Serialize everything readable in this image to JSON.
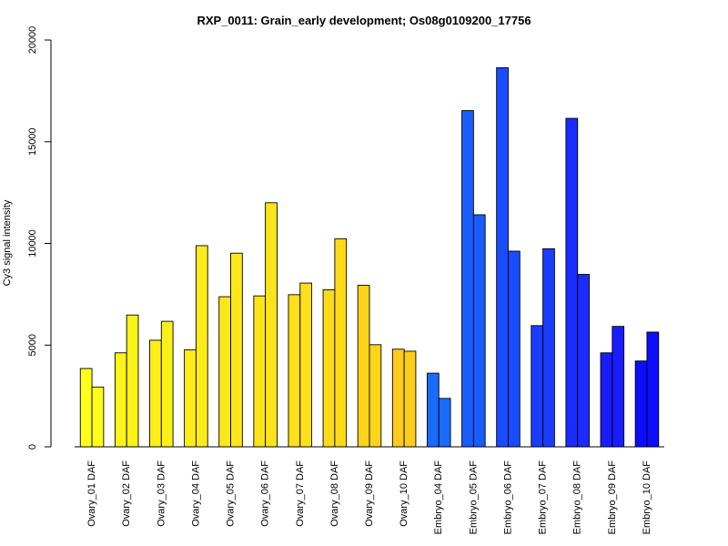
{
  "chart_data": {
    "type": "bar",
    "title": "RXP_0011: Grain_early development; Os08g0109200_17756",
    "xlabel": "",
    "ylabel": "Cy3 signal intensity",
    "ylim": [
      0,
      20000
    ],
    "yticks": [
      0,
      5000,
      10000,
      15000,
      20000
    ],
    "grid": false,
    "categories": [
      "Ovary_01 DAF",
      "Ovary_02 DAF",
      "Ovary_03 DAF",
      "Ovary_04 DAF",
      "Ovary_05 DAF",
      "Ovary_06 DAF",
      "Ovary_07 DAF",
      "Ovary_08 DAF",
      "Ovary_09 DAF",
      "Ovary_10 DAF",
      "Embryo_04 DAF",
      "Embryo_05 DAF",
      "Embryo_06 DAF",
      "Embryo_07 DAF",
      "Embryo_08 DAF",
      "Embryo_09 DAF",
      "Embryo_10 DAF"
    ],
    "colors": [
      "#ffff1a",
      "#fdf318",
      "#fdf01a",
      "#fdec1a",
      "#fde71a",
      "#fde31a",
      "#fddf1a",
      "#fdda1a",
      "#fdd41a",
      "#fdcc1a",
      "#1a6bff",
      "#1a5cff",
      "#1a4cff",
      "#1a3cff",
      "#1a2cff",
      "#1a1cff",
      "#0d0dff"
    ],
    "series": [
      {
        "values": [
          3850,
          4620,
          5240,
          4770,
          7380,
          7420,
          7480,
          7720,
          7940,
          4800,
          3620,
          16530,
          18640,
          5960,
          16150,
          4620,
          4220
        ]
      },
      {
        "values": [
          2940,
          6480,
          6170,
          9890,
          9520,
          12000,
          8050,
          10230,
          5020,
          4700,
          2380,
          11410,
          9620,
          9740,
          8480,
          5920,
          5640
        ]
      }
    ]
  }
}
